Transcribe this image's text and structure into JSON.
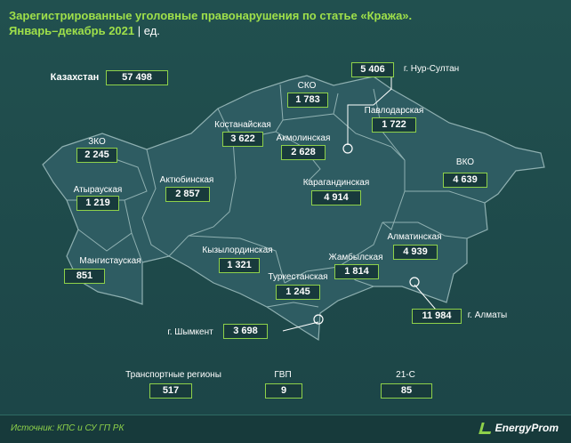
{
  "title": {
    "line1": "Зарегистрированные уголовные правонарушения по статье «Кража».",
    "line2": "Январь–декабрь 2021",
    "unit": "ед."
  },
  "kazakhstan": {
    "label": "Казахстан",
    "value": "57 498"
  },
  "regions": [
    {
      "key": "nur_sultan",
      "label": "г. Нур-Султан",
      "value": "5 406"
    },
    {
      "key": "sko",
      "label": "СКО",
      "value": "1 783"
    },
    {
      "key": "pavlodar",
      "label": "Павлодарская",
      "value": "1 722"
    },
    {
      "key": "kostanay",
      "label": "Костанайская",
      "value": "3 622"
    },
    {
      "key": "akmola",
      "label": "Акмолинская",
      "value": "2 628"
    },
    {
      "key": "zko",
      "label": "ЗКО",
      "value": "2 245"
    },
    {
      "key": "aktobe",
      "label": "Актюбинская",
      "value": "2 857"
    },
    {
      "key": "vko",
      "label": "ВКО",
      "value": "4 639"
    },
    {
      "key": "atyrau",
      "label": "Атырауская",
      "value": "1 219"
    },
    {
      "key": "karaganda",
      "label": "Карагандинская",
      "value": "4 914"
    },
    {
      "key": "almaty_region",
      "label": "Алматинская",
      "value": "4 939"
    },
    {
      "key": "kyzylorda",
      "label": "Кызылординская",
      "value": "1 321"
    },
    {
      "key": "zhambyl",
      "label": "Жамбылская",
      "value": "1 814"
    },
    {
      "key": "mangystau",
      "label": "Мангистауская",
      "value": "851"
    },
    {
      "key": "turkestan",
      "label": "Туркестанская",
      "value": "1 245"
    },
    {
      "key": "almaty_city",
      "label": "г. Алматы",
      "value": "11 984"
    },
    {
      "key": "shymkent",
      "label": "г. Шымкент",
      "value": "3 698"
    }
  ],
  "other": [
    {
      "key": "transport",
      "label": "Транспортные регионы",
      "value": "517"
    },
    {
      "key": "gvp",
      "label": "ГВП",
      "value": "9"
    },
    {
      "key": "c21",
      "label": "21-С",
      "value": "85"
    }
  ],
  "footer": {
    "source": "Источник: КПС и СУ ГП РК",
    "logo": "EnergyProm"
  },
  "colors": {
    "background": "#1f4a4d",
    "map_fill": "#2e5c62",
    "borders": "#7f9ea0",
    "accent": "#8ed14a"
  }
}
